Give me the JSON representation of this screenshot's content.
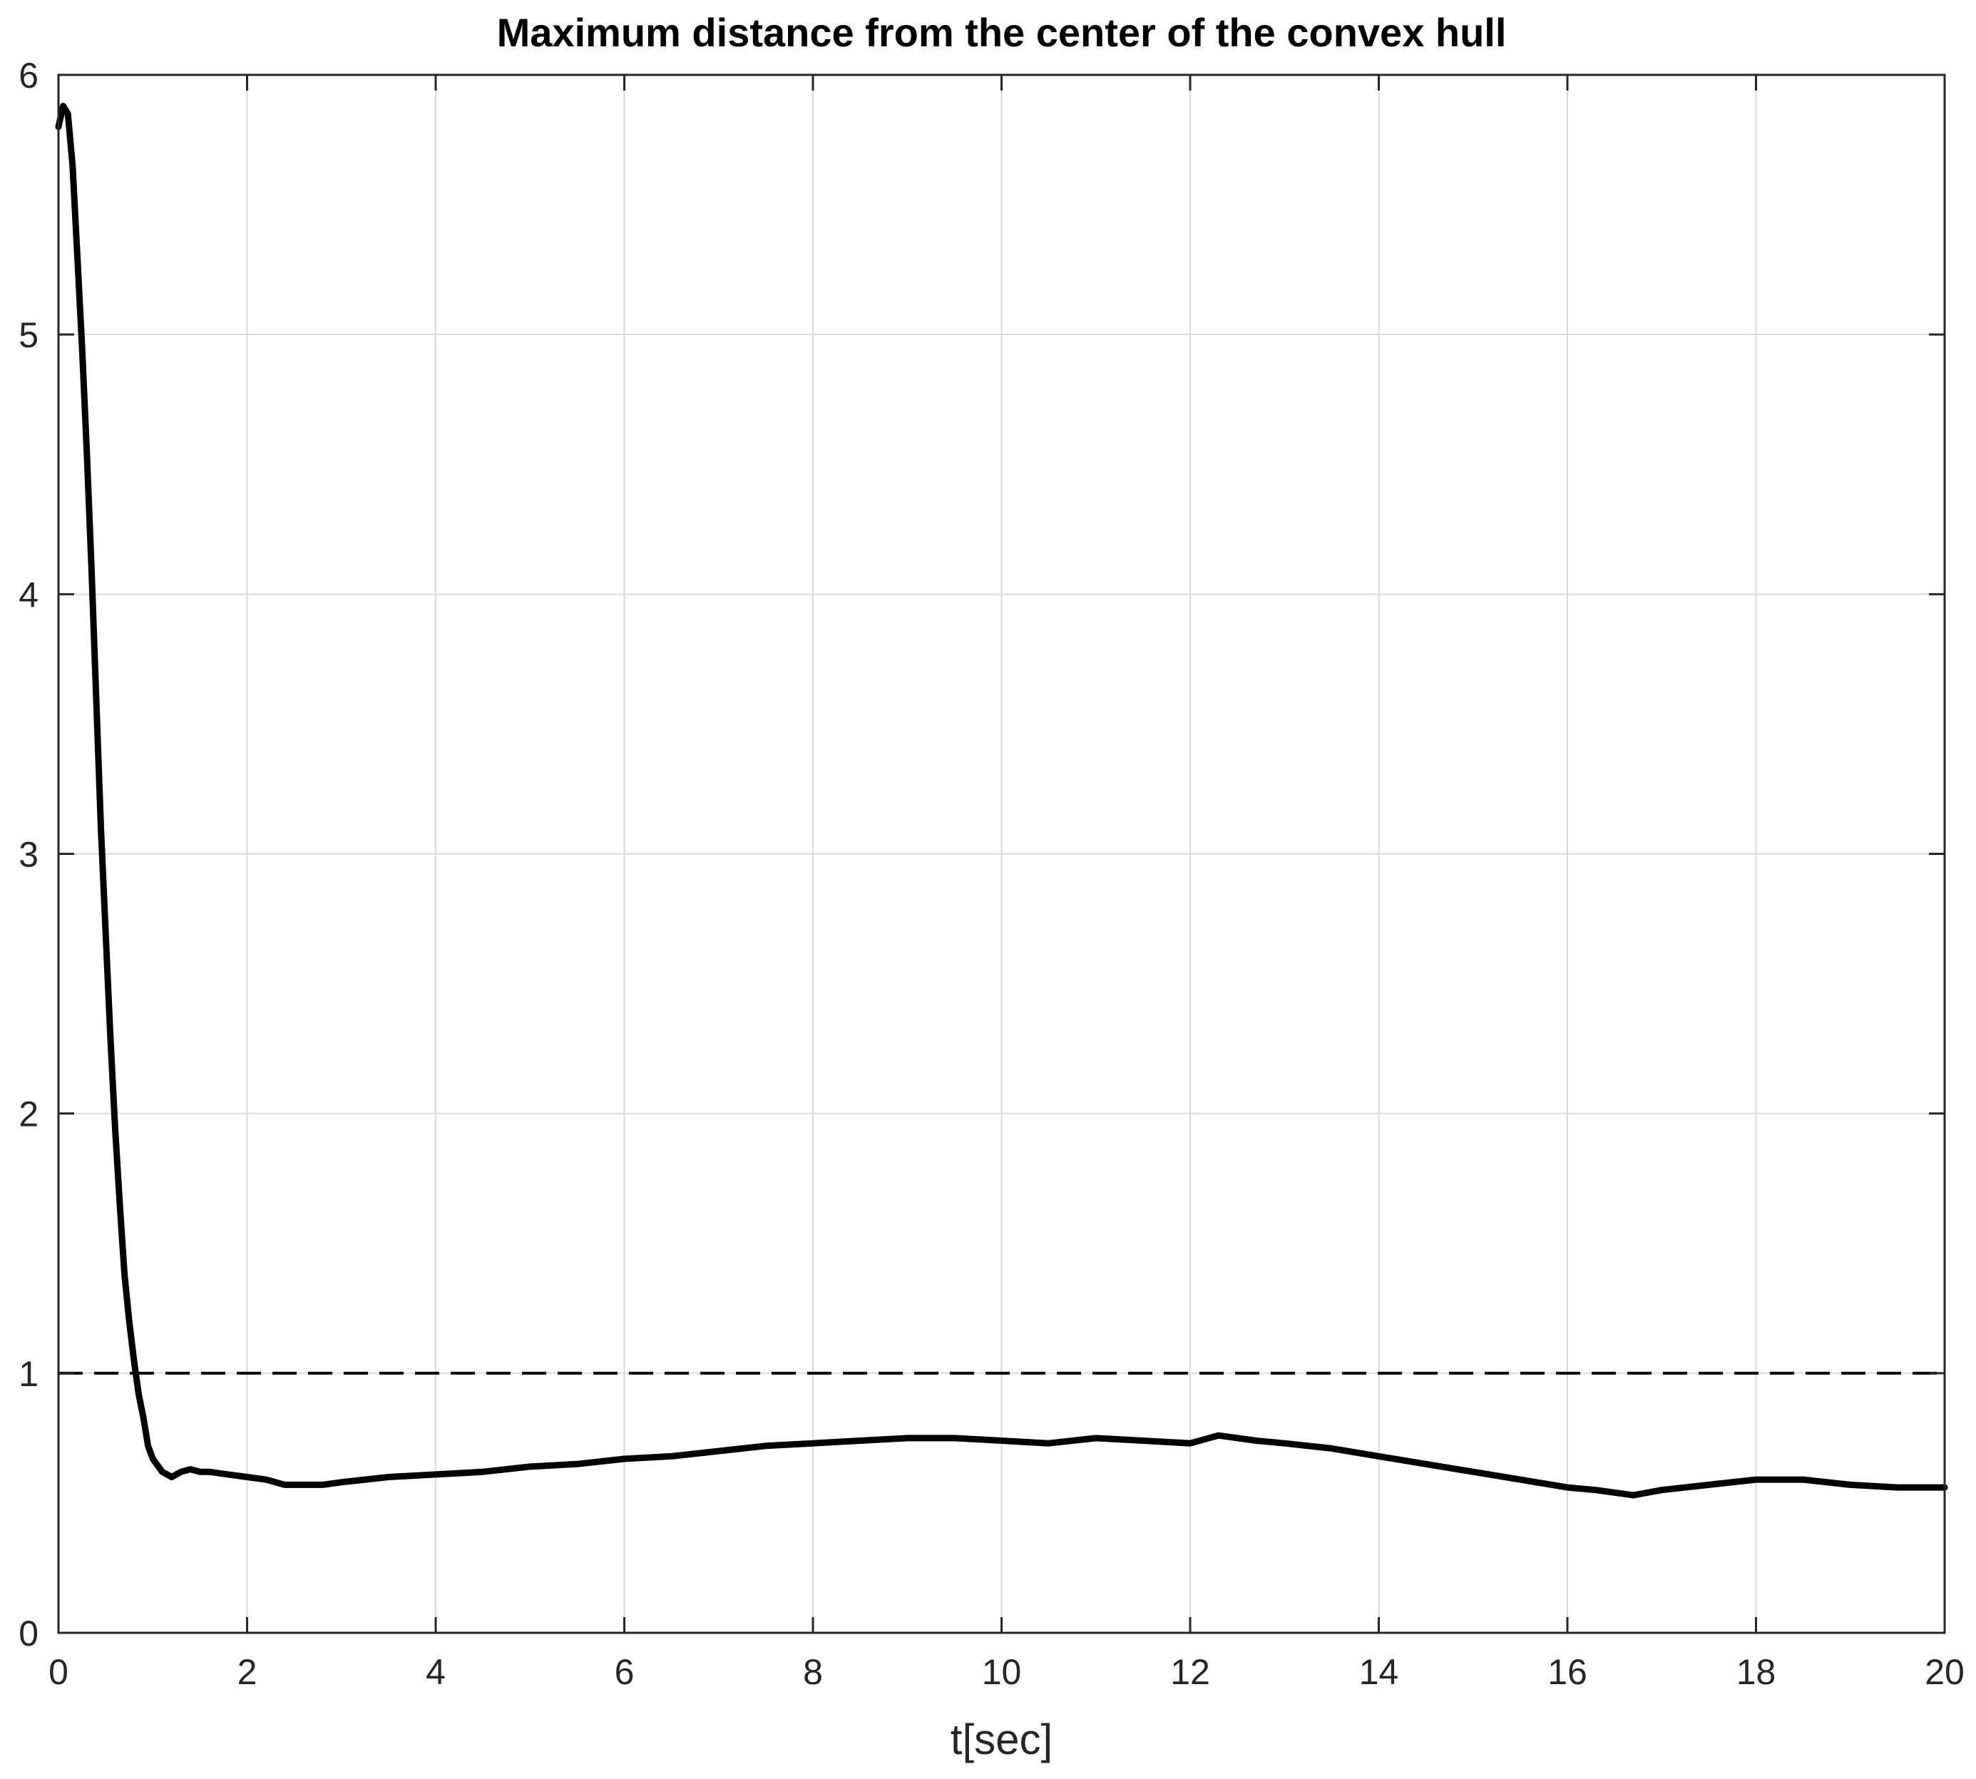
{
  "chart_data": {
    "type": "line",
    "title": "Maximum distance from the center of the convex hull",
    "xlabel": "t[sec]",
    "ylabel": "",
    "xlim": [
      0,
      20
    ],
    "ylim": [
      0,
      6
    ],
    "x_ticks": [
      0,
      2,
      4,
      6,
      8,
      10,
      12,
      14,
      16,
      18,
      20
    ],
    "y_ticks": [
      0,
      1,
      2,
      3,
      4,
      5,
      6
    ],
    "grid": true,
    "legend": "none",
    "colors": {
      "line": "#000000",
      "grid": "#d9d9d9",
      "axes": "#262626"
    },
    "series": [
      {
        "x": [
          0,
          0.05,
          0.1,
          0.15,
          0.2,
          0.25,
          0.3,
          0.35,
          0.4,
          0.45,
          0.5,
          0.55,
          0.6,
          0.65,
          0.7,
          0.75,
          0.8,
          0.85,
          0.9,
          0.95,
          1.0,
          1.1,
          1.2,
          1.3,
          1.4,
          1.5,
          1.6,
          1.8,
          2.0,
          2.2,
          2.4,
          2.5,
          2.8,
          3.0,
          3.5,
          4.0,
          4.5,
          5.0,
          5.5,
          6.0,
          6.5,
          7.0,
          7.5,
          8.0,
          8.5,
          9.0,
          9.5,
          10.0,
          10.5,
          11.0,
          11.5,
          12.0,
          12.3,
          12.7,
          13.0,
          13.5,
          14.0,
          14.5,
          15.0,
          15.5,
          16.0,
          16.3,
          16.7,
          17.0,
          17.5,
          18.0,
          18.5,
          19.0,
          19.5,
          20.0
        ],
        "y": [
          5.8,
          5.88,
          5.85,
          5.65,
          5.3,
          4.95,
          4.55,
          4.1,
          3.6,
          3.1,
          2.7,
          2.3,
          1.95,
          1.65,
          1.38,
          1.2,
          1.05,
          0.92,
          0.83,
          0.72,
          0.67,
          0.62,
          0.6,
          0.62,
          0.63,
          0.62,
          0.62,
          0.61,
          0.6,
          0.59,
          0.57,
          0.57,
          0.57,
          0.58,
          0.6,
          0.61,
          0.62,
          0.64,
          0.65,
          0.67,
          0.68,
          0.7,
          0.72,
          0.73,
          0.74,
          0.75,
          0.75,
          0.74,
          0.73,
          0.75,
          0.74,
          0.73,
          0.76,
          0.74,
          0.73,
          0.71,
          0.68,
          0.65,
          0.62,
          0.59,
          0.56,
          0.55,
          0.53,
          0.55,
          0.57,
          0.59,
          0.59,
          0.57,
          0.56,
          0.56
        ]
      }
    ],
    "reference_line": {
      "y": 1,
      "style": "dashed"
    }
  }
}
